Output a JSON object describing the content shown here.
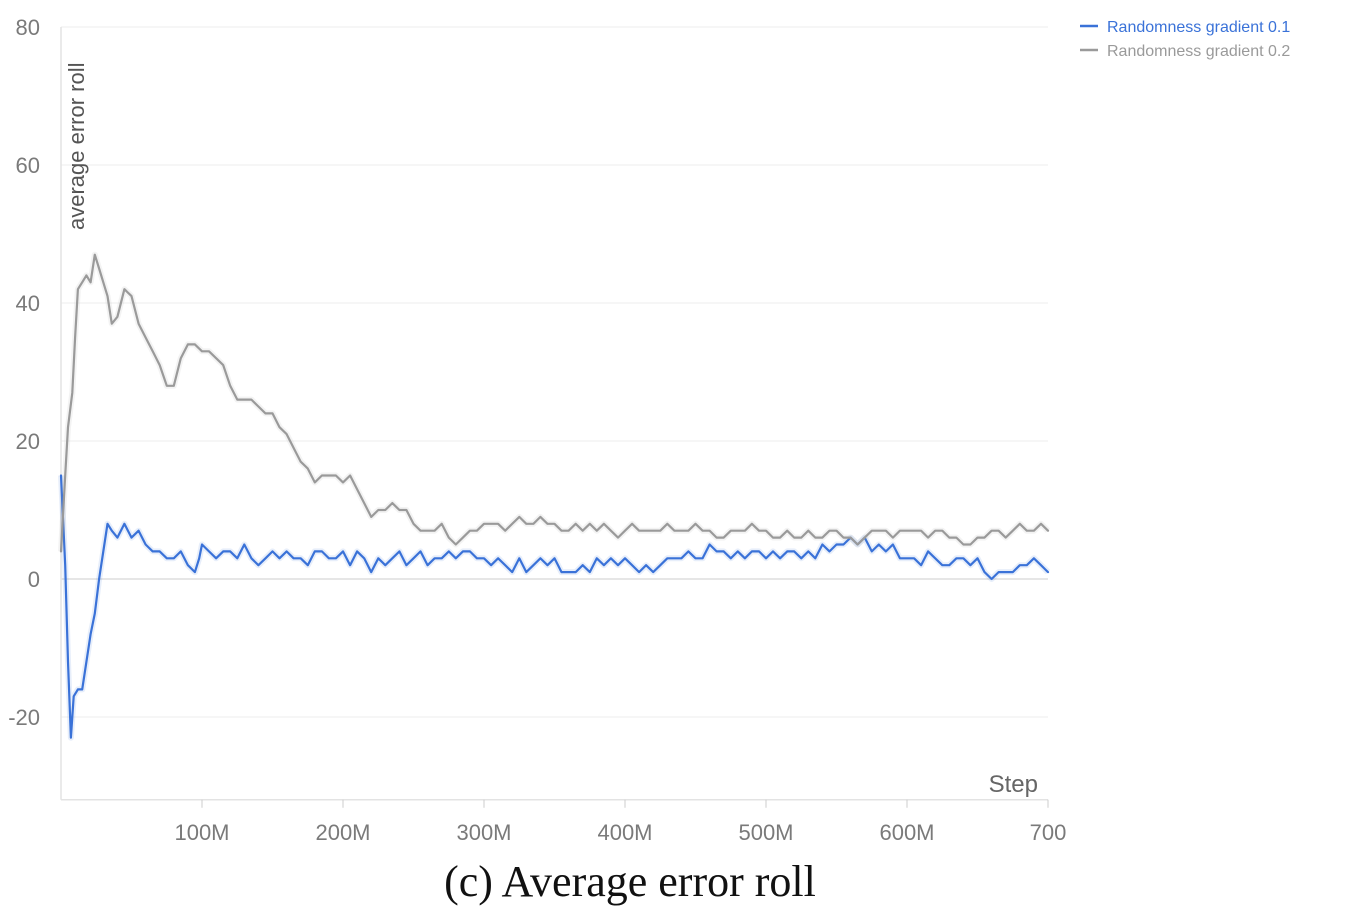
{
  "chart_data": {
    "type": "line",
    "caption": "(c) Average error roll",
    "ylabel": "average error roll",
    "xlabel": "Step",
    "ylim": [
      -32,
      80
    ],
    "xlim": [
      0,
      700
    ],
    "yticks": [
      {
        "value": 80,
        "label": "80"
      },
      {
        "value": 60,
        "label": "60"
      },
      {
        "value": 40,
        "label": "40"
      },
      {
        "value": 20,
        "label": "20"
      },
      {
        "value": 0,
        "label": "0"
      },
      {
        "value": -20,
        "label": "-20"
      }
    ],
    "xticks": [
      {
        "value": 100,
        "label": "100M"
      },
      {
        "value": 200,
        "label": "200M"
      },
      {
        "value": 300,
        "label": "300M"
      },
      {
        "value": 400,
        "label": "400M"
      },
      {
        "value": 500,
        "label": "500M"
      },
      {
        "value": 600,
        "label": "600M"
      },
      {
        "value": 700,
        "label": "700"
      }
    ],
    "grid": true,
    "legend_position": "top-right",
    "series": [
      {
        "name": "Randomness gradient 0.1",
        "color": "#3a72d8",
        "points": [
          [
            0,
            15
          ],
          [
            3,
            2
          ],
          [
            5,
            -12
          ],
          [
            7,
            -23
          ],
          [
            9,
            -17
          ],
          [
            12,
            -16
          ],
          [
            15,
            -16
          ],
          [
            18,
            -12
          ],
          [
            21,
            -8
          ],
          [
            24,
            -5
          ],
          [
            27,
            0
          ],
          [
            30,
            4
          ],
          [
            33,
            8
          ],
          [
            36,
            7
          ],
          [
            40,
            6
          ],
          [
            45,
            8
          ],
          [
            50,
            6
          ],
          [
            55,
            7
          ],
          [
            60,
            5
          ],
          [
            65,
            4
          ],
          [
            70,
            4
          ],
          [
            75,
            3
          ],
          [
            80,
            3
          ],
          [
            85,
            4
          ],
          [
            90,
            2
          ],
          [
            95,
            1
          ],
          [
            98,
            3
          ],
          [
            100,
            5
          ],
          [
            105,
            4
          ],
          [
            110,
            3
          ],
          [
            115,
            4
          ],
          [
            120,
            4
          ],
          [
            125,
            3
          ],
          [
            130,
            5
          ],
          [
            135,
            3
          ],
          [
            140,
            2
          ],
          [
            145,
            3
          ],
          [
            150,
            4
          ],
          [
            155,
            3
          ],
          [
            160,
            4
          ],
          [
            165,
            3
          ],
          [
            170,
            3
          ],
          [
            175,
            2
          ],
          [
            180,
            4
          ],
          [
            185,
            4
          ],
          [
            190,
            3
          ],
          [
            195,
            3
          ],
          [
            200,
            4
          ],
          [
            205,
            2
          ],
          [
            210,
            4
          ],
          [
            215,
            3
          ],
          [
            220,
            1
          ],
          [
            225,
            3
          ],
          [
            230,
            2
          ],
          [
            235,
            3
          ],
          [
            240,
            4
          ],
          [
            245,
            2
          ],
          [
            250,
            3
          ],
          [
            255,
            4
          ],
          [
            260,
            2
          ],
          [
            265,
            3
          ],
          [
            270,
            3
          ],
          [
            275,
            4
          ],
          [
            280,
            3
          ],
          [
            285,
            4
          ],
          [
            290,
            4
          ],
          [
            295,
            3
          ],
          [
            300,
            3
          ],
          [
            305,
            2
          ],
          [
            310,
            3
          ],
          [
            315,
            2
          ],
          [
            320,
            1
          ],
          [
            325,
            3
          ],
          [
            330,
            1
          ],
          [
            335,
            2
          ],
          [
            340,
            3
          ],
          [
            345,
            2
          ],
          [
            350,
            3
          ],
          [
            355,
            1
          ],
          [
            360,
            1
          ],
          [
            365,
            1
          ],
          [
            370,
            2
          ],
          [
            375,
            1
          ],
          [
            380,
            3
          ],
          [
            385,
            2
          ],
          [
            390,
            3
          ],
          [
            395,
            2
          ],
          [
            400,
            3
          ],
          [
            405,
            2
          ],
          [
            410,
            1
          ],
          [
            415,
            2
          ],
          [
            420,
            1
          ],
          [
            425,
            2
          ],
          [
            430,
            3
          ],
          [
            435,
            3
          ],
          [
            440,
            3
          ],
          [
            445,
            4
          ],
          [
            450,
            3
          ],
          [
            455,
            3
          ],
          [
            460,
            5
          ],
          [
            465,
            4
          ],
          [
            470,
            4
          ],
          [
            475,
            3
          ],
          [
            480,
            4
          ],
          [
            485,
            3
          ],
          [
            490,
            4
          ],
          [
            495,
            4
          ],
          [
            500,
            3
          ],
          [
            505,
            4
          ],
          [
            510,
            3
          ],
          [
            515,
            4
          ],
          [
            520,
            4
          ],
          [
            525,
            3
          ],
          [
            530,
            4
          ],
          [
            535,
            3
          ],
          [
            540,
            5
          ],
          [
            545,
            4
          ],
          [
            550,
            5
          ],
          [
            555,
            5
          ],
          [
            560,
            6
          ],
          [
            565,
            5
          ],
          [
            570,
            6
          ],
          [
            575,
            4
          ],
          [
            580,
            5
          ],
          [
            585,
            4
          ],
          [
            590,
            5
          ],
          [
            595,
            3
          ],
          [
            600,
            3
          ],
          [
            605,
            3
          ],
          [
            610,
            2
          ],
          [
            615,
            4
          ],
          [
            620,
            3
          ],
          [
            625,
            2
          ],
          [
            630,
            2
          ],
          [
            635,
            3
          ],
          [
            640,
            3
          ],
          [
            645,
            2
          ],
          [
            650,
            3
          ],
          [
            655,
            1
          ],
          [
            660,
            0
          ],
          [
            665,
            1
          ],
          [
            670,
            1
          ],
          [
            675,
            1
          ],
          [
            680,
            2
          ],
          [
            685,
            2
          ],
          [
            690,
            3
          ],
          [
            695,
            2
          ],
          [
            700,
            1
          ]
        ]
      },
      {
        "name": "Randomness gradient 0.2",
        "color": "#9a9a9a",
        "points": [
          [
            0,
            4
          ],
          [
            3,
            15
          ],
          [
            5,
            22
          ],
          [
            8,
            27
          ],
          [
            10,
            35
          ],
          [
            12,
            42
          ],
          [
            15,
            43
          ],
          [
            18,
            44
          ],
          [
            21,
            43
          ],
          [
            24,
            47
          ],
          [
            27,
            45
          ],
          [
            30,
            43
          ],
          [
            33,
            41
          ],
          [
            36,
            37
          ],
          [
            40,
            38
          ],
          [
            45,
            42
          ],
          [
            50,
            41
          ],
          [
            55,
            37
          ],
          [
            60,
            35
          ],
          [
            65,
            33
          ],
          [
            70,
            31
          ],
          [
            75,
            28
          ],
          [
            80,
            28
          ],
          [
            85,
            32
          ],
          [
            90,
            34
          ],
          [
            95,
            34
          ],
          [
            100,
            33
          ],
          [
            105,
            33
          ],
          [
            110,
            32
          ],
          [
            115,
            31
          ],
          [
            120,
            28
          ],
          [
            125,
            26
          ],
          [
            130,
            26
          ],
          [
            135,
            26
          ],
          [
            140,
            25
          ],
          [
            145,
            24
          ],
          [
            150,
            24
          ],
          [
            155,
            22
          ],
          [
            160,
            21
          ],
          [
            165,
            19
          ],
          [
            170,
            17
          ],
          [
            175,
            16
          ],
          [
            180,
            14
          ],
          [
            185,
            15
          ],
          [
            190,
            15
          ],
          [
            195,
            15
          ],
          [
            200,
            14
          ],
          [
            205,
            15
          ],
          [
            210,
            13
          ],
          [
            215,
            11
          ],
          [
            220,
            9
          ],
          [
            225,
            10
          ],
          [
            230,
            10
          ],
          [
            235,
            11
          ],
          [
            240,
            10
          ],
          [
            245,
            10
          ],
          [
            250,
            8
          ],
          [
            255,
            7
          ],
          [
            260,
            7
          ],
          [
            265,
            7
          ],
          [
            270,
            8
          ],
          [
            275,
            6
          ],
          [
            280,
            5
          ],
          [
            285,
            6
          ],
          [
            290,
            7
          ],
          [
            295,
            7
          ],
          [
            300,
            8
          ],
          [
            305,
            8
          ],
          [
            310,
            8
          ],
          [
            315,
            7
          ],
          [
            320,
            8
          ],
          [
            325,
            9
          ],
          [
            330,
            8
          ],
          [
            335,
            8
          ],
          [
            340,
            9
          ],
          [
            345,
            8
          ],
          [
            350,
            8
          ],
          [
            355,
            7
          ],
          [
            360,
            7
          ],
          [
            365,
            8
          ],
          [
            370,
            7
          ],
          [
            375,
            8
          ],
          [
            380,
            7
          ],
          [
            385,
            8
          ],
          [
            390,
            7
          ],
          [
            395,
            6
          ],
          [
            400,
            7
          ],
          [
            405,
            8
          ],
          [
            410,
            7
          ],
          [
            415,
            7
          ],
          [
            420,
            7
          ],
          [
            425,
            7
          ],
          [
            430,
            8
          ],
          [
            435,
            7
          ],
          [
            440,
            7
          ],
          [
            445,
            7
          ],
          [
            450,
            8
          ],
          [
            455,
            7
          ],
          [
            460,
            7
          ],
          [
            465,
            6
          ],
          [
            470,
            6
          ],
          [
            475,
            7
          ],
          [
            480,
            7
          ],
          [
            485,
            7
          ],
          [
            490,
            8
          ],
          [
            495,
            7
          ],
          [
            500,
            7
          ],
          [
            505,
            6
          ],
          [
            510,
            6
          ],
          [
            515,
            7
          ],
          [
            520,
            6
          ],
          [
            525,
            6
          ],
          [
            530,
            7
          ],
          [
            535,
            6
          ],
          [
            540,
            6
          ],
          [
            545,
            7
          ],
          [
            550,
            7
          ],
          [
            555,
            6
          ],
          [
            560,
            6
          ],
          [
            565,
            5
          ],
          [
            570,
            6
          ],
          [
            575,
            7
          ],
          [
            580,
            7
          ],
          [
            585,
            7
          ],
          [
            590,
            6
          ],
          [
            595,
            7
          ],
          [
            600,
            7
          ],
          [
            605,
            7
          ],
          [
            610,
            7
          ],
          [
            615,
            6
          ],
          [
            620,
            7
          ],
          [
            625,
            7
          ],
          [
            630,
            6
          ],
          [
            635,
            6
          ],
          [
            640,
            5
          ],
          [
            645,
            5
          ],
          [
            650,
            6
          ],
          [
            655,
            6
          ],
          [
            660,
            7
          ],
          [
            665,
            7
          ],
          [
            670,
            6
          ],
          [
            675,
            7
          ],
          [
            680,
            8
          ],
          [
            685,
            7
          ],
          [
            690,
            7
          ],
          [
            695,
            8
          ],
          [
            700,
            7
          ]
        ]
      }
    ]
  }
}
